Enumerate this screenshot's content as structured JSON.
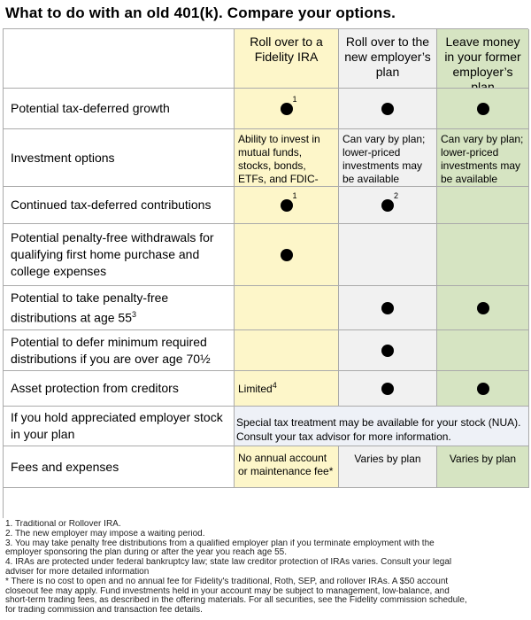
{
  "title": "What to do with an old 401(k). Compare your options.",
  "columns": {
    "c1": "Roll over to a Fidelity IRA",
    "c2": "Roll over to the new employer’s plan",
    "c3": "Leave money in your former employer’s plan"
  },
  "colors": {
    "fidelity_ira": "#fdf6c9",
    "new_employer": "#f1f1f1",
    "former_employer": "#d6e4c2",
    "nua_row": "#eef1f7"
  },
  "rows": {
    "r1": {
      "label": "Potential tax-deferred growth",
      "c1": {
        "dot": true,
        "sup": "1"
      },
      "c2": {
        "dot": true
      },
      "c3": {
        "dot": true
      }
    },
    "r2": {
      "label": "Investment options",
      "c1": "Ability to invest in mutual funds, stocks, bonds, ETFs, and FDIC-insured CDs",
      "c2": "Can vary by plan; lower-priced investments may be available",
      "c3": "Can vary by plan; lower-priced investments may be available"
    },
    "r3": {
      "label": "Continued tax-deferred contributions",
      "c1": {
        "dot": true,
        "sup": "1"
      },
      "c2": {
        "dot": true,
        "sup": "2"
      },
      "c3": {
        "dot": false
      }
    },
    "r4": {
      "label": "Potential penalty-free withdrawals for qualifying first home purchase and college expenses",
      "c1": {
        "dot": true
      },
      "c2": {
        "dot": false
      },
      "c3": {
        "dot": false
      }
    },
    "r5": {
      "label": "Potential to take penalty-free distributions at age 55",
      "label_sup": "3",
      "c1": {
        "dot": false
      },
      "c2": {
        "dot": true
      },
      "c3": {
        "dot": true
      }
    },
    "r6": {
      "label": "Potential to defer minimum required distributions if you are over age 70½",
      "c1": {
        "dot": false
      },
      "c2": {
        "dot": true
      },
      "c3": {
        "dot": false
      }
    },
    "r7": {
      "label": "Asset protection from creditors",
      "c1_text": "Limited",
      "c1_sup": "4",
      "c2": {
        "dot": true
      },
      "c3": {
        "dot": true
      }
    },
    "r8": {
      "label": "If you hold appreciated employer stock in your plan",
      "span_text": "Special tax treatment may be available for your stock (NUA). Consult your tax advisor for more information."
    },
    "r9": {
      "label": "Fees and expenses",
      "c1": "No annual account or maintenance fee*",
      "c2": "Varies by plan",
      "c3": "Varies by plan"
    }
  },
  "footnotes": [
    "1. Traditional or Rollover IRA.",
    "2. The new employer may impose a waiting period.",
    "3. You may take penalty free distributions from a qualified employer plan if you terminate employment with the",
    "employer sponsoring the plan during or after the year you reach age 55.",
    "4. IRAs are protected under federal bankruptcy law; state law creditor protection of IRAs varies. Consult your legal",
    "adviser for more detailed information",
    "* There is no cost to open and no annual fee for Fidelity's traditional, Roth, SEP, and rollover IRAs. A $50 account",
    "closeout fee may apply. Fund investments held in your account may be subject to management, low-balance, and",
    "short-term trading fees, as described in the offering materials. For all securities, see the Fidelity commission schedule,",
    "for trading commission and transaction fee details."
  ]
}
